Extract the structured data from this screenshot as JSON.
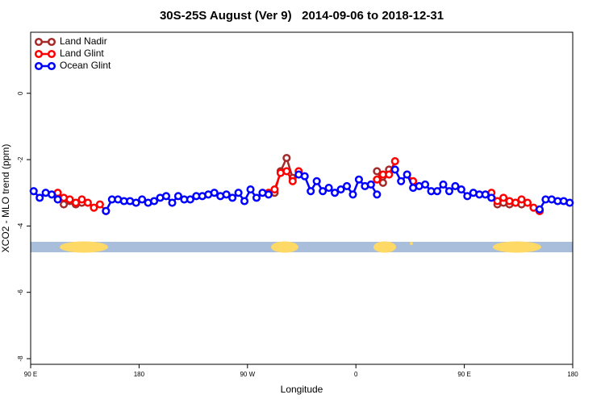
{
  "chart_data": {
    "type": "line",
    "title": "30S-25S August (Ver 9)   2014-09-06 to 2018-12-31",
    "x_label": "Longitude",
    "y_label": "XCO2 - MLO trend (ppm)",
    "x": [
      92.5,
      97.5,
      102.5,
      107.5,
      112.5,
      117.5,
      122.5,
      127.5,
      132.5,
      137.5,
      142.5,
      147.5,
      152.5,
      157.5,
      162.5,
      167.5,
      172.5,
      177.5,
      182.5,
      187.5,
      192.5,
      197.5,
      202.5,
      207.5,
      212.5,
      217.5,
      222.5,
      227.5,
      232.5,
      237.5,
      242.5,
      247.5,
      252.5,
      257.5,
      262.5,
      267.5,
      272.5,
      277.5,
      282.5,
      287.5,
      292.5,
      297.5,
      302.5,
      307.5,
      312.5,
      317.5,
      322.5,
      327.5,
      332.5,
      337.5,
      342.5,
      347.5,
      352.5,
      357.5,
      362.5,
      367.5,
      372.5,
      377.5,
      382.5,
      387.5,
      392.5,
      397.5,
      402.5,
      407.5,
      412.5,
      417.5,
      422.5,
      427.5,
      432.5,
      437.5,
      442.5,
      447.5,
      452.5,
      457.5,
      462.5,
      467.5,
      472.5,
      477.5,
      482.5,
      487.5,
      492.5,
      497.5,
      502.5,
      507.5,
      512.5,
      517.5,
      522.5,
      527.5,
      532.5,
      537.5
    ],
    "series": [
      {
        "name": "Land Nadir",
        "color": "#a52a2a",
        "values": [
          null,
          null,
          null,
          null,
          null,
          -3.35,
          -3.25,
          -3.35,
          -3.3,
          null,
          null,
          null,
          null,
          null,
          null,
          null,
          null,
          null,
          null,
          null,
          null,
          null,
          null,
          null,
          null,
          null,
          null,
          null,
          null,
          null,
          null,
          null,
          null,
          null,
          null,
          null,
          null,
          null,
          null,
          null,
          -3.0,
          -2.35,
          -1.95,
          -2.55,
          null,
          null,
          null,
          null,
          null,
          null,
          null,
          null,
          null,
          null,
          null,
          null,
          null,
          -2.35,
          -2.7,
          -2.3,
          null,
          null,
          null,
          null,
          null,
          null,
          null,
          null,
          null,
          null,
          null,
          null,
          null,
          null,
          null,
          null,
          null,
          -3.35,
          -3.3,
          -3.35,
          -3.3,
          -3.35,
          null,
          null,
          -3.55,
          null,
          null,
          null,
          null,
          null
        ]
      },
      {
        "name": "Land Glint",
        "color": "#ff0000",
        "values": [
          null,
          null,
          null,
          null,
          -3.0,
          -3.15,
          -3.2,
          -3.3,
          -3.2,
          -3.3,
          -3.45,
          -3.35,
          -3.55,
          null,
          null,
          null,
          null,
          null,
          null,
          null,
          null,
          null,
          null,
          null,
          null,
          null,
          null,
          null,
          null,
          null,
          null,
          null,
          null,
          null,
          null,
          null,
          null,
          null,
          null,
          -3.0,
          -2.9,
          -2.4,
          -2.35,
          -2.65,
          -2.35,
          null,
          null,
          null,
          null,
          null,
          null,
          null,
          null,
          null,
          null,
          null,
          null,
          -2.6,
          -2.45,
          -2.45,
          -2.05,
          null,
          -2.45,
          -2.65,
          null,
          null,
          null,
          null,
          null,
          null,
          null,
          null,
          null,
          null,
          null,
          null,
          -3.0,
          -3.25,
          -3.15,
          -3.25,
          -3.3,
          -3.2,
          -3.3,
          -3.45,
          -3.55,
          null,
          null,
          null,
          null,
          null
        ]
      },
      {
        "name": "Ocean Glint",
        "color": "#0000ff",
        "values": [
          -2.95,
          -3.15,
          -3.0,
          -3.05,
          -3.2,
          null,
          null,
          null,
          null,
          null,
          null,
          null,
          -3.55,
          -3.2,
          -3.2,
          -3.25,
          -3.25,
          -3.3,
          -3.2,
          -3.3,
          -3.25,
          -3.15,
          -3.1,
          -3.3,
          -3.1,
          -3.2,
          -3.2,
          -3.1,
          -3.1,
          -3.05,
          -3.0,
          -3.1,
          -3.05,
          -3.15,
          -3.0,
          -3.25,
          -2.9,
          -3.15,
          -3.0,
          -3.05,
          null,
          null,
          null,
          null,
          -2.45,
          -2.5,
          -2.95,
          -2.65,
          -2.95,
          -2.85,
          -3.0,
          -2.9,
          -2.8,
          -3.05,
          -2.6,
          -2.8,
          -2.75,
          -3.05,
          null,
          null,
          -2.3,
          -2.65,
          -2.45,
          -2.85,
          -2.8,
          -2.75,
          -2.95,
          -2.95,
          -2.75,
          -2.95,
          -2.8,
          -2.9,
          -3.1,
          -3.0,
          -3.05,
          -3.05,
          -3.15,
          null,
          null,
          null,
          null,
          null,
          null,
          null,
          -3.5,
          -3.2,
          -3.2,
          -3.25,
          -3.25,
          -3.3
        ]
      }
    ],
    "xlim": [
      90,
      540
    ],
    "xticks": [
      {
        "value": 90,
        "label": "90 E"
      },
      {
        "value": 180,
        "label": "180"
      },
      {
        "value": 270,
        "label": "90 W"
      },
      {
        "value": 360,
        "label": "0"
      },
      {
        "value": 450,
        "label": "90 E"
      },
      {
        "value": 540,
        "label": "180"
      }
    ],
    "ylim": [
      -8.17,
      1.84
    ],
    "yticks": [
      0,
      -2,
      -4,
      -6,
      -8
    ],
    "legend": "top-left",
    "grid": false
  }
}
